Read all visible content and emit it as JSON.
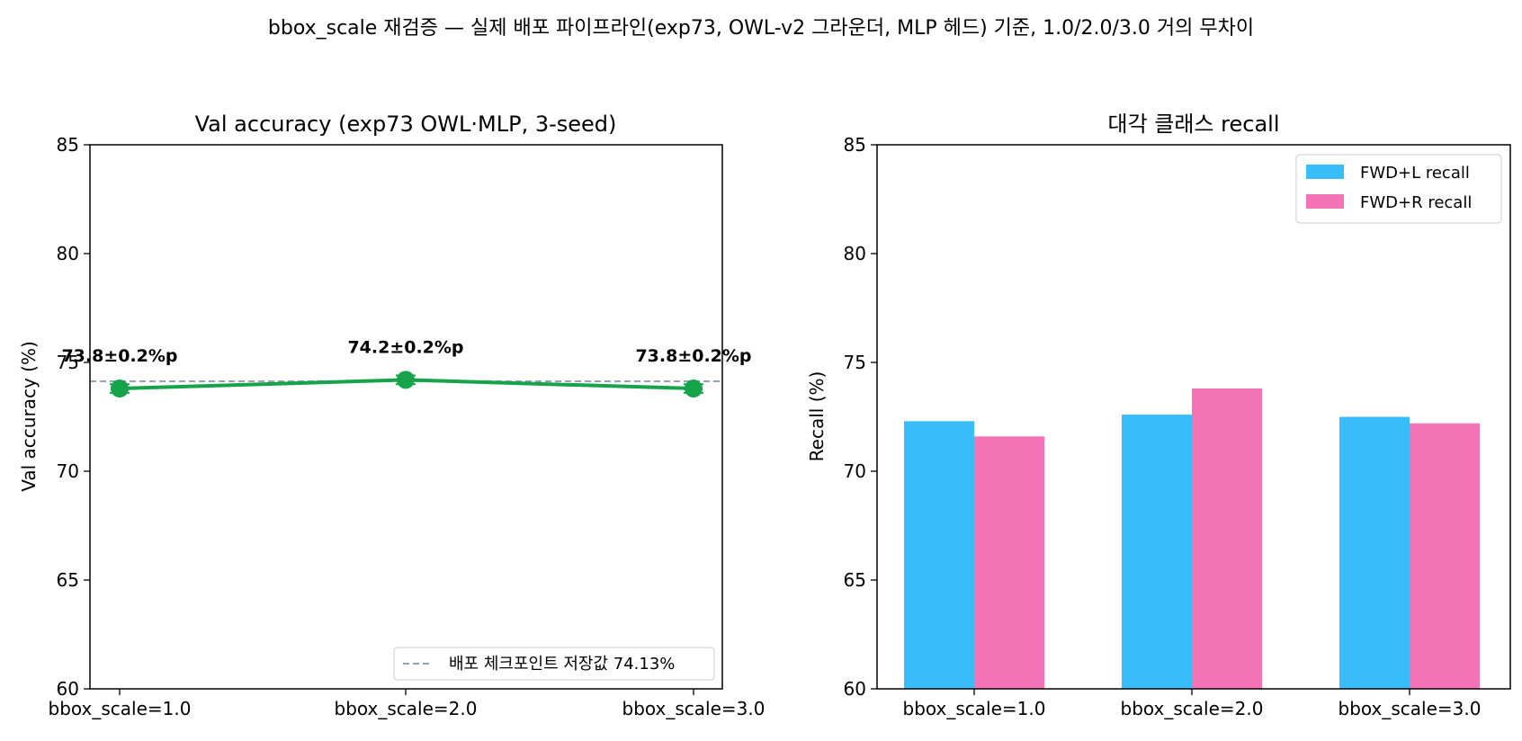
{
  "suptitle": "bbox_scale 재검증 — 실제 배포 파이프라인(exp73, OWL-v2 그라운더, MLP 헤드) 기준, 1.0/2.0/3.0 거의 무차이",
  "colors": {
    "line": "#16a34a",
    "ref": "#94a3b8",
    "fwd_l": "#38bdf8",
    "fwd_r": "#f472b6"
  },
  "chart_data": [
    {
      "type": "line",
      "title": "Val accuracy (exp73 OWL·MLP, 3-seed)",
      "xlabel": "",
      "ylabel": "Val accuracy (%)",
      "categories": [
        "bbox_scale=1.0",
        "bbox_scale=2.0",
        "bbox_scale=3.0"
      ],
      "ylim": [
        60,
        85
      ],
      "yticks": [
        "60",
        "65",
        "70",
        "75",
        "80",
        "85"
      ],
      "series": [
        {
          "values": [
            73.8,
            74.2,
            73.8
          ],
          "errors": [
            0.2,
            0.2,
            0.2
          ]
        }
      ],
      "annotations": [
        "73.8±0.2%p",
        "74.2±0.2%p",
        "73.8±0.2%p"
      ],
      "reference_line": {
        "value": 74.13,
        "label": "배포 체크포인트 저장값 74.13%"
      },
      "legend": "lower-right",
      "grid": false
    },
    {
      "type": "bar",
      "title": "대각 클래스 recall",
      "xlabel": "",
      "ylabel": "Recall (%)",
      "categories": [
        "bbox_scale=1.0",
        "bbox_scale=2.0",
        "bbox_scale=3.0"
      ],
      "ylim": [
        60,
        85
      ],
      "yticks": [
        "60",
        "65",
        "70",
        "75",
        "80",
        "85"
      ],
      "series": [
        {
          "name": "FWD+L recall",
          "values": [
            72.3,
            72.6,
            72.5
          ]
        },
        {
          "name": "FWD+R recall",
          "values": [
            71.6,
            73.8,
            72.2
          ]
        }
      ],
      "legend": "top-right",
      "grid": false
    }
  ]
}
